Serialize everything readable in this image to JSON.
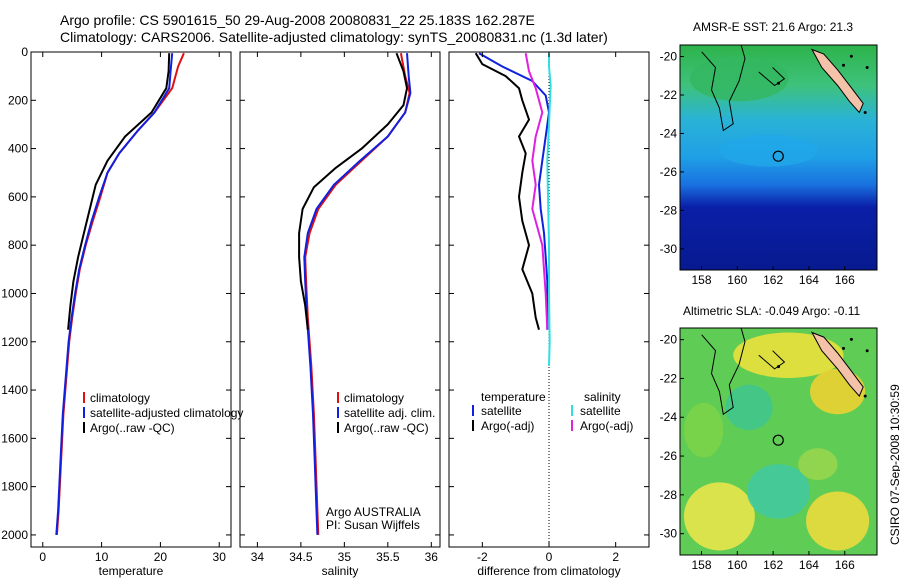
{
  "title_line1": "Argo profile: CS 5901615_50 29-Aug-2008 20080831_22 25.183S 162.287E",
  "title_line2": "Climatology: CARS2006. Satellite-adjusted climatology: synTS_20080831.nc (1.3d later)",
  "argo_credit": [
    "Argo AUSTRALIA",
    "PI: Susan Wijffels"
  ],
  "footer_credit": "CSIRO 07-Sep-2008 10:30:59",
  "colors": {
    "climatology": "#e01010",
    "satellite": "#1020e0",
    "argo": "#000000",
    "sat_salinity": "#30e0e0",
    "argo_salinity": "#e020e0",
    "land": "#f4c2a8"
  },
  "chart_data": [
    {
      "type": "line",
      "id": "temperature",
      "xlabel": "temperature",
      "ylabel": "",
      "xlim": [
        -2,
        32
      ],
      "ylim": [
        2050,
        0
      ],
      "yreverse": true,
      "xticks": [
        0,
        10,
        20,
        30
      ],
      "yticks": [
        0,
        200,
        400,
        600,
        800,
        1000,
        1200,
        1400,
        1600,
        1800,
        2000
      ],
      "legend": [
        "climatology",
        "satellite-adjusted climatology",
        "Argo(..raw -QC)"
      ],
      "legend_position": "lower-middle",
      "series": [
        {
          "name": "climatology",
          "color_key": "climatology",
          "points": [
            [
              24,
              5
            ],
            [
              23,
              60
            ],
            [
              22,
              150
            ],
            [
              19,
              250
            ],
            [
              16,
              330
            ],
            [
              13,
              420
            ],
            [
              11,
              500
            ],
            [
              9.8,
              600
            ],
            [
              8.5,
              700
            ],
            [
              7.3,
              800
            ],
            [
              6.3,
              900
            ],
            [
              5.6,
              1000
            ],
            [
              5,
              1100
            ],
            [
              4.5,
              1200
            ],
            [
              4,
              1350
            ],
            [
              3.5,
              1500
            ],
            [
              3.1,
              1700
            ],
            [
              2.7,
              1900
            ],
            [
              2.4,
              2000
            ]
          ]
        },
        {
          "name": "satellite-adjusted climatology",
          "color_key": "satellite",
          "points": [
            [
              22,
              5
            ],
            [
              21.8,
              60
            ],
            [
              21.5,
              150
            ],
            [
              19,
              250
            ],
            [
              16,
              330
            ],
            [
              13,
              420
            ],
            [
              11,
              500
            ],
            [
              9.6,
              600
            ],
            [
              8.3,
              700
            ],
            [
              7.2,
              800
            ],
            [
              6.2,
              900
            ],
            [
              5.5,
              1000
            ],
            [
              4.9,
              1100
            ],
            [
              4.4,
              1200
            ],
            [
              3.9,
              1350
            ],
            [
              3.4,
              1500
            ],
            [
              3,
              1700
            ],
            [
              2.6,
              1900
            ],
            [
              2.3,
              2000
            ]
          ]
        },
        {
          "name": "Argo(..raw -QC)",
          "color_key": "argo",
          "points": [
            [
              21.5,
              5
            ],
            [
              21.4,
              80
            ],
            [
              21,
              150
            ],
            [
              18.5,
              250
            ],
            [
              14,
              350
            ],
            [
              11,
              450
            ],
            [
              9,
              550
            ],
            [
              8,
              650
            ],
            [
              7,
              750
            ],
            [
              6,
              850
            ],
            [
              5.2,
              950
            ],
            [
              4.7,
              1050
            ],
            [
              4.3,
              1150
            ]
          ]
        }
      ]
    },
    {
      "type": "line",
      "id": "salinity",
      "xlabel": "salinity",
      "ylabel": "",
      "xlim": [
        33.8,
        36.1
      ],
      "ylim": [
        2050,
        0
      ],
      "yreverse": true,
      "xticks": [
        34,
        34.5,
        35,
        35.5,
        36
      ],
      "yticks": [
        0,
        200,
        400,
        600,
        800,
        1000,
        1200,
        1400,
        1600,
        1800,
        2000
      ],
      "legend": [
        "climatology",
        "satellite adj. clim.",
        "Argo(..raw -QC)"
      ],
      "legend_position": "lower-middle",
      "series": [
        {
          "name": "climatology",
          "color_key": "climatology",
          "points": [
            [
              35.65,
              5
            ],
            [
              35.7,
              100
            ],
            [
              35.75,
              170
            ],
            [
              35.7,
              250
            ],
            [
              35.5,
              350
            ],
            [
              35.2,
              450
            ],
            [
              34.9,
              550
            ],
            [
              34.7,
              650
            ],
            [
              34.6,
              750
            ],
            [
              34.55,
              850
            ],
            [
              34.56,
              950
            ],
            [
              34.58,
              1100
            ],
            [
              34.62,
              1300
            ],
            [
              34.65,
              1500
            ],
            [
              34.67,
              1700
            ],
            [
              34.69,
              1900
            ],
            [
              34.7,
              2000
            ]
          ]
        },
        {
          "name": "satellite adj. clim.",
          "color_key": "satellite",
          "points": [
            [
              35.72,
              5
            ],
            [
              35.74,
              100
            ],
            [
              35.76,
              170
            ],
            [
              35.7,
              250
            ],
            [
              35.5,
              350
            ],
            [
              35.18,
              450
            ],
            [
              34.88,
              550
            ],
            [
              34.68,
              650
            ],
            [
              34.58,
              750
            ],
            [
              34.54,
              850
            ],
            [
              34.55,
              950
            ],
            [
              34.57,
              1100
            ],
            [
              34.61,
              1300
            ],
            [
              34.64,
              1500
            ],
            [
              34.66,
              1700
            ],
            [
              34.68,
              1900
            ],
            [
              34.69,
              2000
            ]
          ]
        },
        {
          "name": "Argo(..raw -QC)",
          "color_key": "argo",
          "points": [
            [
              35.6,
              5
            ],
            [
              35.68,
              80
            ],
            [
              35.72,
              150
            ],
            [
              35.68,
              220
            ],
            [
              35.5,
              300
            ],
            [
              35.2,
              400
            ],
            [
              34.9,
              480
            ],
            [
              34.65,
              560
            ],
            [
              34.52,
              650
            ],
            [
              34.48,
              750
            ],
            [
              34.48,
              850
            ],
            [
              34.5,
              950
            ],
            [
              34.55,
              1050
            ],
            [
              34.58,
              1150
            ]
          ]
        }
      ]
    },
    {
      "type": "line",
      "id": "difference",
      "xlabel": "difference from climatology",
      "ylabel": "",
      "xlim": [
        -3,
        3
      ],
      "ylim": [
        2050,
        0
      ],
      "yreverse": true,
      "xticks": [
        -2,
        0,
        2
      ],
      "yticks": [
        0,
        200,
        400,
        600,
        800,
        1000,
        1200,
        1400,
        1600,
        1800,
        2000
      ],
      "zero_line": "dotted",
      "legend_headers": [
        "temperature",
        "salinity"
      ],
      "legend": [
        "satellite",
        "Argo(-adj)",
        "satellite",
        "Argo(-adj)"
      ],
      "legend_position": "lower",
      "series": [
        {
          "name": "temperature satellite",
          "color_key": "satellite",
          "points": [
            [
              -2.1,
              5
            ],
            [
              -1.4,
              60
            ],
            [
              -0.5,
              120
            ],
            [
              -0.1,
              180
            ],
            [
              0,
              250
            ],
            [
              -0.1,
              350
            ],
            [
              -0.2,
              450
            ],
            [
              -0.3,
              550
            ],
            [
              -0.25,
              650
            ],
            [
              -0.15,
              750
            ],
            [
              -0.1,
              850
            ],
            [
              -0.05,
              950
            ],
            [
              -0.05,
              1050
            ],
            [
              -0.05,
              1150
            ]
          ]
        },
        {
          "name": "temperature Argo(-adj)",
          "color_key": "argo",
          "points": [
            [
              -2.2,
              5
            ],
            [
              -2,
              50
            ],
            [
              -1.3,
              100
            ],
            [
              -0.9,
              150
            ],
            [
              -0.8,
              200
            ],
            [
              -0.6,
              280
            ],
            [
              -0.9,
              350
            ],
            [
              -0.7,
              420
            ],
            [
              -0.8,
              500
            ],
            [
              -0.9,
              600
            ],
            [
              -0.8,
              700
            ],
            [
              -0.6,
              800
            ],
            [
              -0.8,
              900
            ],
            [
              -0.5,
              1000
            ],
            [
              -0.4,
              1100
            ],
            [
              -0.3,
              1150
            ]
          ]
        },
        {
          "name": "salinity satellite",
          "color_key": "sat_salinity",
          "points": [
            [
              0,
              5
            ],
            [
              0,
              60
            ],
            [
              0.05,
              140
            ],
            [
              0.03,
              200
            ],
            [
              0,
              300
            ],
            [
              -0.05,
              450
            ],
            [
              -0.03,
              600
            ],
            [
              0,
              800
            ],
            [
              0,
              1000
            ],
            [
              0.02,
              1200
            ],
            [
              0,
              1300
            ]
          ]
        },
        {
          "name": "salinity Argo(-adj)",
          "color_key": "argo_salinity",
          "points": [
            [
              -0.7,
              5
            ],
            [
              -0.6,
              80
            ],
            [
              -0.4,
              150
            ],
            [
              -0.2,
              250
            ],
            [
              -0.4,
              350
            ],
            [
              -0.5,
              450
            ],
            [
              -0.4,
              550
            ],
            [
              -0.5,
              650
            ],
            [
              -0.2,
              800
            ],
            [
              -0.1,
              1000
            ],
            [
              -0.05,
              1150
            ]
          ]
        }
      ]
    },
    {
      "type": "heatmap",
      "id": "sst_map",
      "title": "AMSR-E SST: 21.6 Argo: 21.3",
      "xticks": [
        158,
        160,
        162,
        164,
        166
      ],
      "yticks": [
        -20,
        -22,
        -24,
        -26,
        -28,
        -30
      ],
      "xlim": [
        156.8,
        167.8
      ],
      "ylim": [
        -31.1,
        -19.4
      ],
      "marker": [
        162.287,
        -25.183
      ]
    },
    {
      "type": "heatmap",
      "id": "sla_map",
      "title": "Altimetric SLA: -0.049 Argo: -0.11",
      "xticks": [
        158,
        160,
        162,
        164,
        166
      ],
      "yticks": [
        -20,
        -22,
        -24,
        -26,
        -28,
        -30
      ],
      "xlim": [
        156.8,
        167.8
      ],
      "ylim": [
        -31.1,
        -19.4
      ],
      "marker": [
        162.287,
        -25.183
      ]
    }
  ]
}
